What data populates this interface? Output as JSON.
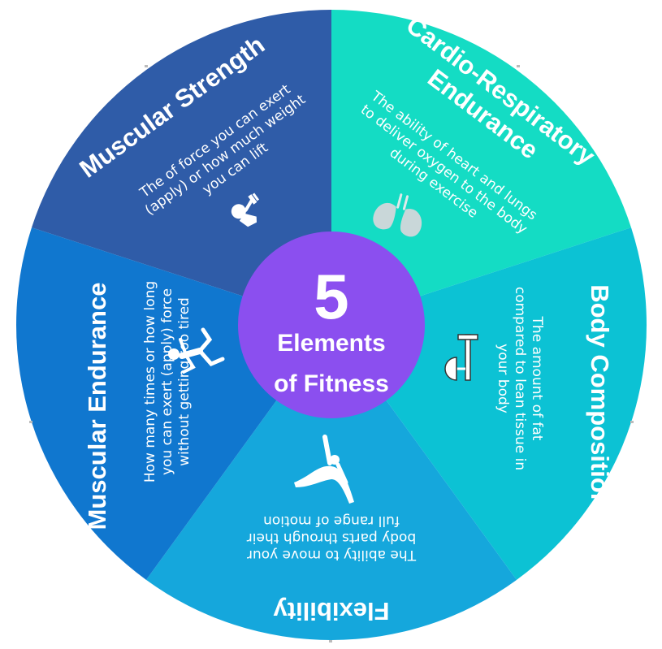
{
  "center": {
    "number": "5",
    "line1": "Elements",
    "line2": "of Fitness"
  },
  "segments": [
    {
      "title": "Muscular Strength",
      "desc": [
        "The of force you can exert",
        "(apply) or how much weight",
        "you can lift"
      ],
      "color": "#2f5ca8",
      "icon": "weightlifter-icon"
    },
    {
      "title": "Cardio-Respiratory",
      "title2": "Endurance",
      "desc": [
        "The ability of heart and lungs",
        "to deliver oxygen to the body",
        "during exercise"
      ],
      "color": "#14dcc4",
      "icon": "lungs-icon"
    },
    {
      "title": "Body Composition",
      "desc": [
        "The amount of fat",
        "compared to lean tissue in",
        "your body"
      ],
      "color": "#0cc2d4",
      "icon": "scale-icon"
    },
    {
      "title": "Flexibility",
      "desc": [
        "The ability to move your",
        "body parts through their",
        "full range of motion"
      ],
      "color": "#15a7dc",
      "icon": "gymnast-icon"
    },
    {
      "title": "Muscular Endurance",
      "desc": [
        "How many times or how long",
        "you can exert (apply) force",
        "without getting too tired"
      ],
      "color": "#1077cf",
      "icon": "runner-icon"
    }
  ],
  "colors": {
    "center": "#8b4fef",
    "divider": "#ffffff"
  }
}
